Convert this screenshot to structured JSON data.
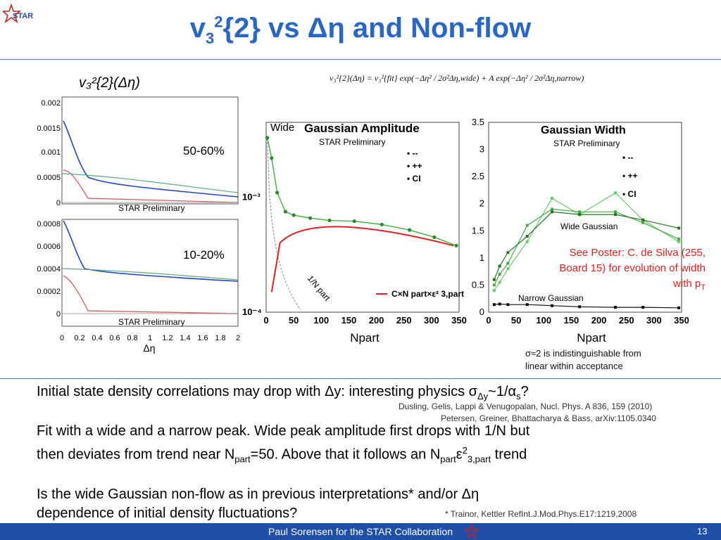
{
  "header": {
    "title_prefix": "v",
    "title_sub": "3",
    "title_sup": "2",
    "title_rest": "{2} vs Δη and Non-flow",
    "logo_text": "STAR"
  },
  "left_panel": {
    "heading": "v₃²{2}(Δη)",
    "top_label": "50-60%",
    "bottom_label": "10-20%",
    "prelim_top": "STAR Preliminary",
    "prelim_bottom": "STAR Preliminary",
    "xlabel": "Δη",
    "top_yticks": [
      "0.002",
      "0.0015",
      "0.001",
      "0.0005",
      "0"
    ],
    "bottom_yticks": [
      "0.0008",
      "0.0006",
      "0.0004",
      "0.0002",
      "0"
    ],
    "xticks": [
      "0",
      "0.2",
      "0.4",
      "0.6",
      "0.8",
      "1",
      "1.2",
      "1.4",
      "1.6",
      "1.8",
      "2"
    ]
  },
  "formula": "v₃²{2}(Δη) = v₃²{fit} exp(−Δη² / 2σ²Δη,wide) + A exp(−Δη² / 2σ²Δη,narrow)",
  "chart_data": [
    {
      "type": "scatter",
      "title": "Gaussian Amplitude",
      "subtitle": "STAR Preliminary",
      "label_wide": "Wide",
      "xlabel": "Npart",
      "ylog": true,
      "yticks": [
        "10⁻³",
        "10⁻⁴"
      ],
      "xticks": [
        "0",
        "50",
        "100",
        "150",
        "200",
        "250",
        "300",
        "350"
      ],
      "xlim": [
        0,
        350
      ],
      "legend": [
        "--",
        "++",
        "CI"
      ],
      "legend_placement": "top-right",
      "annot_curve": "1/N part",
      "annot_red": "C×N part×ε² 3,part",
      "series": [
        {
          "name": "CI",
          "x": [
            2,
            10,
            20,
            35,
            50,
            80,
            115,
            160,
            210,
            260,
            305,
            345
          ],
          "y": [
            0.0033,
            0.0022,
            0.0011,
            0.00075,
            0.0007,
            0.00066,
            0.00063,
            0.00062,
            0.00058,
            0.00052,
            0.00045,
            0.00038
          ]
        }
      ]
    },
    {
      "type": "line",
      "title": "Gaussian Width",
      "subtitle": "STAR Preliminary",
      "xlabel": "Npart",
      "ylim": [
        0,
        3.5
      ],
      "yticks": [
        "3.5",
        "3",
        "2.5",
        "2",
        "1.5",
        "1",
        "0.5",
        "0"
      ],
      "xticks": [
        "0",
        "50",
        "100",
        "150",
        "200",
        "250",
        "300",
        "350"
      ],
      "legend": [
        "--",
        "++",
        "CI"
      ],
      "legend_placement": "top-right",
      "label_wide": "Wide Gaussian",
      "label_narrow": "Narrow Gaussian",
      "series": [
        {
          "name": "--",
          "x": [
            10,
            20,
            35,
            70,
            115,
            165,
            230,
            280,
            345
          ],
          "y": [
            0.4,
            0.55,
            0.8,
            1.3,
            2.1,
            1.8,
            2.2,
            1.7,
            1.3
          ]
        },
        {
          "name": "++",
          "x": [
            10,
            20,
            35,
            70,
            115,
            165,
            230,
            280,
            345
          ],
          "y": [
            0.5,
            0.7,
            0.9,
            1.6,
            1.9,
            1.85,
            1.85,
            1.65,
            1.35
          ]
        },
        {
          "name": "CI",
          "x": [
            10,
            20,
            35,
            70,
            115,
            165,
            230,
            280,
            345
          ],
          "y": [
            0.6,
            0.85,
            1.1,
            1.4,
            1.85,
            1.8,
            1.8,
            1.7,
            1.55
          ]
        },
        {
          "name": "narrow",
          "x": [
            10,
            20,
            35,
            70,
            115,
            165,
            230,
            280,
            345
          ],
          "y": [
            0.14,
            0.15,
            0.14,
            0.14,
            0.12,
            0.1,
            0.09,
            0.09,
            0.08
          ]
        }
      ]
    }
  ],
  "poster_note": "See Poster: C. de Silva (255, Board 15) for evolution of width with p",
  "poster_sub": "T",
  "sigma_note_1": "σ≈2 is indistinguishable from",
  "sigma_note_2": "linear within acceptance",
  "body": {
    "p1": "Initial state density correlations may drop with Δy: interesting physics σ",
    "p1_sub": "Δy",
    "p1_end": "~1/α",
    "p1_sub2": "s",
    "p1_q": "?",
    "ref1": "Dusling, Gelis, Lappi & Venugopalan, Nucl. Phys. A 836, 159 (2010)",
    "ref2": "Petersen, Greiner, Bhattacharya & Bass, arXiv:1105.0340",
    "p2a": "Fit with a wide and a narrow peak. Wide peak amplitude first drops with 1/N but",
    "p2b": "then deviates from trend near N",
    "p2b_sub": "part",
    "p2b_mid": "=50. Above that it follows an N",
    "p2b_sub2": "part",
    "p2b_eps": "ε",
    "p2b_sup": "2",
    "p2b_sub3": "3,part",
    "p2b_end": " trend",
    "p3a": "Is the wide Gaussian non-flow as in previous interpretations* and/or Δη",
    "p3b": "dependence of initial density fluctuations?",
    "ref3": "* Trainor, Kettler RefInt.J.Mod.Phys.E17:1219,2008"
  },
  "footer": {
    "text": "Paul Sorensen for the STAR Collaboration",
    "page": "13"
  }
}
